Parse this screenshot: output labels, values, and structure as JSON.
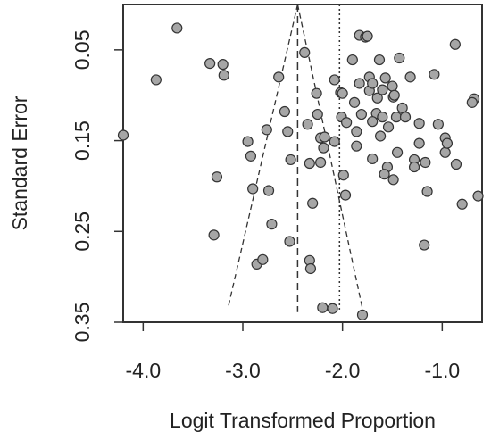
{
  "chart_data": {
    "type": "scatter",
    "title": "",
    "xlabel": "Logit Transformed Proportion",
    "ylabel": "Standard Error",
    "xlim": [
      -4.2,
      -0.6
    ],
    "ylim": [
      0.0,
      0.35
    ],
    "y_reversed": true,
    "x_ticks": [
      -4.0,
      -3.0,
      -2.0,
      -1.0
    ],
    "x_tick_labels": [
      "-4.0",
      "-3.0",
      "-2.0",
      "-1.0"
    ],
    "y_ticks": [
      0.05,
      0.15,
      0.25,
      0.35
    ],
    "y_tick_labels": [
      "0.05",
      "0.15",
      "0.25",
      "0.35"
    ],
    "grid": false,
    "legend": "none",
    "colors": {
      "point_fill": "#a6a6a6",
      "point_stroke": "#333333",
      "line": "#333333",
      "frame": "#333333"
    },
    "reference_lines": {
      "pooled_estimate_x": -2.45,
      "null_reference_x": -2.03,
      "funnel_apex": [
        -2.45,
        0.0
      ],
      "funnel_left_base": [
        -3.15,
        0.335
      ],
      "funnel_right_base": [
        -1.8,
        0.335
      ]
    },
    "series": [
      {
        "points": [
          [
            -4.2,
            0.144
          ],
          [
            -3.87,
            0.083
          ],
          [
            -3.66,
            0.026
          ],
          [
            -3.33,
            0.065
          ],
          [
            -3.2,
            0.066
          ],
          [
            -3.19,
            0.078
          ],
          [
            -3.26,
            0.19
          ],
          [
            -3.29,
            0.254
          ],
          [
            -2.95,
            0.151
          ],
          [
            -2.92,
            0.167
          ],
          [
            -2.9,
            0.203
          ],
          [
            -2.86,
            0.286
          ],
          [
            -2.8,
            0.281
          ],
          [
            -2.76,
            0.138
          ],
          [
            -2.74,
            0.205
          ],
          [
            -2.71,
            0.242
          ],
          [
            -2.64,
            0.08
          ],
          [
            -2.58,
            0.118
          ],
          [
            -2.55,
            0.14
          ],
          [
            -2.53,
            0.261
          ],
          [
            -2.52,
            0.171
          ],
          [
            -2.38,
            0.053
          ],
          [
            -2.35,
            0.132
          ],
          [
            -2.33,
            0.175
          ],
          [
            -2.33,
            0.282
          ],
          [
            -2.3,
            0.219
          ],
          [
            -2.32,
            0.291
          ],
          [
            -2.26,
            0.098
          ],
          [
            -2.25,
            0.121
          ],
          [
            -2.22,
            0.147
          ],
          [
            -2.19,
            0.158
          ],
          [
            -2.22,
            0.174
          ],
          [
            -2.18,
            0.146
          ],
          [
            -2.2,
            0.334
          ],
          [
            -2.1,
            0.335
          ],
          [
            -2.08,
            0.083
          ],
          [
            -2.08,
            0.151
          ],
          [
            -2.02,
            0.097
          ],
          [
            -2.01,
            0.124
          ],
          [
            -1.99,
            0.188
          ],
          [
            -1.97,
            0.21
          ],
          [
            -2.0,
            0.098
          ],
          [
            -1.96,
            0.13
          ],
          [
            -1.9,
            0.061
          ],
          [
            -1.88,
            0.108
          ],
          [
            -1.86,
            0.14
          ],
          [
            -1.86,
            0.156
          ],
          [
            -1.83,
            0.034
          ],
          [
            -1.83,
            0.087
          ],
          [
            -1.81,
            0.121
          ],
          [
            -1.8,
            0.342
          ],
          [
            -1.77,
            0.036
          ],
          [
            -1.75,
            0.035
          ],
          [
            -1.73,
            0.08
          ],
          [
            -1.73,
            0.095
          ],
          [
            -1.7,
            0.087
          ],
          [
            -1.66,
            0.12
          ],
          [
            -1.65,
            0.103
          ],
          [
            -1.63,
            0.061
          ],
          [
            -1.62,
            0.145
          ],
          [
            -1.6,
            0.094
          ],
          [
            -1.6,
            0.124
          ],
          [
            -1.57,
            0.081
          ],
          [
            -1.55,
            0.179
          ],
          [
            -1.54,
            0.135
          ],
          [
            -1.5,
            0.09
          ],
          [
            -1.49,
            0.102
          ],
          [
            -1.49,
            0.193
          ],
          [
            -1.46,
            0.124
          ],
          [
            -1.45,
            0.163
          ],
          [
            -1.43,
            0.059
          ],
          [
            -1.4,
            0.114
          ],
          [
            -1.37,
            0.124
          ],
          [
            -1.32,
            0.08
          ],
          [
            -1.28,
            0.171
          ],
          [
            -1.28,
            0.179
          ],
          [
            -1.23,
            0.131
          ],
          [
            -1.23,
            0.153
          ],
          [
            -1.18,
            0.265
          ],
          [
            -1.17,
            0.174
          ],
          [
            -1.15,
            0.206
          ],
          [
            -1.08,
            0.077
          ],
          [
            -1.04,
            0.132
          ],
          [
            -0.97,
            0.147
          ],
          [
            -0.97,
            0.163
          ],
          [
            -0.87,
            0.044
          ],
          [
            -0.86,
            0.176
          ],
          [
            -0.8,
            0.22
          ],
          [
            -0.68,
            0.104
          ],
          [
            -0.7,
            0.108
          ],
          [
            -0.64,
            0.211
          ],
          [
            -0.95,
            0.153
          ],
          [
            -1.7,
            0.129
          ],
          [
            -1.7,
            0.17
          ],
          [
            -1.58,
            0.187
          ],
          [
            -1.48,
            0.1
          ]
        ]
      }
    ]
  }
}
